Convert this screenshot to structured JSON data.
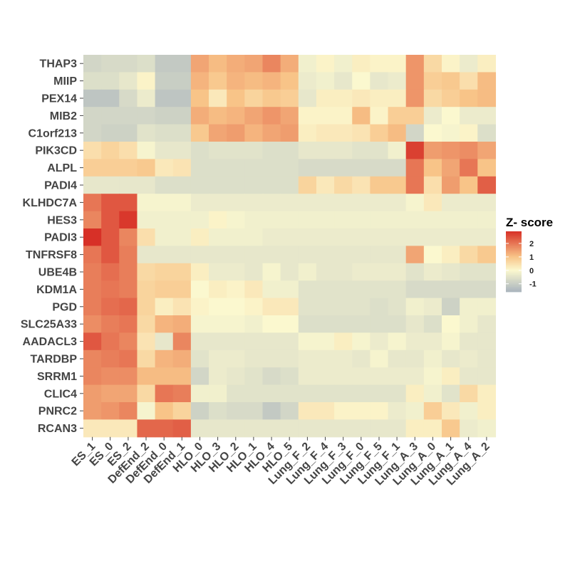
{
  "chart_data": {
    "type": "heatmap",
    "rows": [
      "THAP3",
      "MIIP",
      "PEX14",
      "MIB2",
      "C1orf213",
      "PIK3CD",
      "ALPL",
      "PADI4",
      "KLHDC7A",
      "HES3",
      "PADI3",
      "TNFRSF8",
      "UBE4B",
      "KDM1A",
      "PGD",
      "SLC25A33",
      "AADACL3",
      "TARDBP",
      "SRRM1",
      "CLIC4",
      "PNRC2",
      "RCAN3"
    ],
    "columns": [
      "ES_1",
      "ES_0",
      "ES_2",
      "DefEnd_2",
      "DefEnd_0",
      "DefEnd_1",
      "HLO_0",
      "HLO_3",
      "HLO_2",
      "HLO_1",
      "HLO_4",
      "HLO_5",
      "Lung_F_2",
      "Lung_F_4",
      "Lung_F_3",
      "Lung_F_0",
      "Lung_F_5",
      "Lung_F_1",
      "Lung_A_3",
      "Lung_A_0",
      "Lung_A_1",
      "Lung_A_4",
      "Lung_A_2"
    ],
    "values": [
      [
        -0.8,
        -0.7,
        -0.7,
        -0.6,
        -1.1,
        -1.1,
        1.4,
        1.1,
        1.3,
        1.4,
        1.8,
        1.3,
        -0.2,
        0.1,
        -0.2,
        0.2,
        0.1,
        0.1,
        1.6,
        0.6,
        0.1,
        -0.3,
        0.2
      ],
      [
        -0.6,
        -0.6,
        -0.4,
        0.1,
        -1.0,
        -1.0,
        1.2,
        0.9,
        1.2,
        1.1,
        1.2,
        1.0,
        -0.3,
        -0.2,
        -0.4,
        0.0,
        -0.4,
        -0.3,
        1.6,
        0.8,
        0.9,
        0.5,
        1.1
      ],
      [
        -1.2,
        -1.2,
        -0.7,
        -0.3,
        -1.2,
        -1.2,
        1.0,
        0.3,
        1.0,
        0.7,
        0.9,
        0.8,
        -0.4,
        0.2,
        0.2,
        0.3,
        0.2,
        0.2,
        1.6,
        0.6,
        0.8,
        1.0,
        1.1
      ],
      [
        -0.8,
        -0.8,
        -0.8,
        -0.8,
        -0.9,
        -0.9,
        1.3,
        1.1,
        1.2,
        1.4,
        1.6,
        1.4,
        0.1,
        0.1,
        0.1,
        1.1,
        0.1,
        0.8,
        0.8,
        -0.3,
        0.0,
        -0.3,
        -0.3
      ],
      [
        -0.8,
        -0.9,
        -0.9,
        -0.5,
        -0.6,
        -0.6,
        0.9,
        1.4,
        1.5,
        1.2,
        1.4,
        1.5,
        0.2,
        0.3,
        0.3,
        0.4,
        0.8,
        1.1,
        -0.8,
        0.0,
        -0.1,
        0.1,
        -0.6
      ],
      [
        0.5,
        0.7,
        0.5,
        -0.1,
        -0.4,
        -0.4,
        -0.6,
        -0.5,
        -0.5,
        -0.5,
        -0.6,
        -0.6,
        -0.4,
        -0.4,
        -0.4,
        -0.5,
        -0.5,
        -0.2,
        2.7,
        1.5,
        1.6,
        1.7,
        1.4
      ],
      [
        0.8,
        0.8,
        0.8,
        0.9,
        0.3,
        0.4,
        -0.6,
        -0.6,
        -0.6,
        -0.6,
        -0.6,
        -0.6,
        -0.7,
        -0.7,
        -0.7,
        -0.7,
        -0.7,
        -0.7,
        2.0,
        1.0,
        1.4,
        2.0,
        1.0
      ],
      [
        -0.4,
        -0.4,
        -0.4,
        -0.4,
        -0.6,
        -0.6,
        -0.6,
        -0.6,
        -0.6,
        -0.6,
        -0.6,
        -0.6,
        0.7,
        0.3,
        0.6,
        0.4,
        0.9,
        0.9,
        2.0,
        0.5,
        1.5,
        1.0,
        2.3
      ],
      [
        2.0,
        2.4,
        2.4,
        -0.1,
        -0.1,
        -0.1,
        -0.3,
        -0.3,
        -0.3,
        -0.3,
        -0.3,
        -0.3,
        -0.3,
        -0.3,
        -0.3,
        -0.3,
        -0.3,
        -0.3,
        -0.1,
        0.3,
        -0.3,
        -0.3,
        -0.3
      ],
      [
        1.8,
        2.4,
        2.8,
        -0.2,
        -0.2,
        -0.2,
        -0.2,
        0.1,
        -0.1,
        -0.2,
        -0.2,
        -0.2,
        -0.2,
        -0.2,
        -0.2,
        -0.2,
        -0.2,
        -0.2,
        -0.2,
        -0.2,
        -0.2,
        -0.2,
        -0.2
      ],
      [
        2.9,
        2.4,
        1.8,
        0.5,
        -0.2,
        -0.2,
        0.2,
        -0.2,
        -0.2,
        -0.2,
        -0.3,
        -0.3,
        -0.3,
        -0.3,
        -0.3,
        -0.3,
        -0.3,
        -0.3,
        -0.3,
        -0.3,
        -0.3,
        -0.3,
        -0.3
      ],
      [
        2.0,
        2.4,
        1.9,
        -0.4,
        -0.4,
        -0.4,
        -0.4,
        -0.4,
        -0.4,
        -0.4,
        -0.4,
        -0.4,
        -0.4,
        -0.4,
        -0.4,
        -0.4,
        -0.4,
        -0.4,
        1.4,
        0.0,
        0.2,
        0.6,
        0.9
      ],
      [
        1.9,
        2.1,
        1.9,
        0.6,
        0.7,
        0.7,
        0.2,
        -0.3,
        -0.3,
        -0.4,
        -0.1,
        -0.4,
        -0.2,
        -0.4,
        -0.4,
        -0.3,
        -0.3,
        -0.3,
        -0.5,
        -0.3,
        -0.4,
        -0.5,
        -0.5
      ],
      [
        1.9,
        2.0,
        1.9,
        0.7,
        0.8,
        0.8,
        0.0,
        0.2,
        0.1,
        0.3,
        -0.2,
        -0.2,
        -0.5,
        -0.5,
        -0.5,
        -0.5,
        -0.5,
        -0.5,
        -0.7,
        -0.7,
        -0.7,
        -0.7,
        -0.7
      ],
      [
        1.9,
        2.1,
        2.2,
        0.7,
        0.2,
        0.4,
        0.1,
        0.0,
        0.0,
        0.1,
        0.3,
        0.3,
        -0.5,
        -0.5,
        -0.5,
        -0.5,
        -0.6,
        -0.5,
        -0.2,
        -0.3,
        -0.9,
        -0.2,
        -0.2
      ],
      [
        1.7,
        1.9,
        2.0,
        0.6,
        1.2,
        1.3,
        -0.1,
        -0.1,
        -0.1,
        -0.2,
        0.0,
        0.0,
        -0.6,
        -0.6,
        -0.6,
        -0.6,
        -0.6,
        -0.6,
        -0.4,
        -0.6,
        0.0,
        -0.2,
        -0.4
      ],
      [
        2.4,
        2.0,
        1.8,
        0.4,
        -0.4,
        1.8,
        -0.4,
        -0.4,
        -0.4,
        -0.4,
        -0.4,
        -0.4,
        -0.1,
        -0.1,
        0.2,
        -0.1,
        -0.3,
        -0.1,
        -0.3,
        -0.3,
        -0.1,
        -0.4,
        -0.4
      ],
      [
        1.8,
        1.9,
        2.0,
        0.6,
        1.2,
        1.3,
        -0.5,
        -0.3,
        -0.3,
        -0.4,
        -0.4,
        -0.4,
        -0.3,
        -0.3,
        -0.3,
        -0.4,
        -0.1,
        -0.4,
        -0.4,
        -0.2,
        -0.4,
        -0.3,
        -0.4
      ],
      [
        1.8,
        1.7,
        1.7,
        1.1,
        1.1,
        1.1,
        -0.8,
        -0.3,
        -0.4,
        -0.5,
        -0.7,
        -0.6,
        -0.3,
        -0.3,
        -0.3,
        -0.3,
        -0.3,
        -0.3,
        -0.3,
        -0.1,
        0.2,
        -0.4,
        -0.4
      ],
      [
        1.5,
        1.4,
        1.4,
        0.6,
        2.0,
        1.9,
        -0.2,
        -0.2,
        -0.5,
        -0.5,
        -0.5,
        -0.5,
        -0.5,
        -0.5,
        -0.5,
        -0.5,
        -0.5,
        -0.5,
        0.2,
        -0.2,
        -0.5,
        0.6,
        0.2
      ],
      [
        1.5,
        1.6,
        1.8,
        -0.1,
        1.0,
        0.7,
        -0.9,
        -0.6,
        -0.7,
        -0.7,
        -1.1,
        -0.8,
        0.3,
        0.3,
        0.1,
        0.1,
        0.1,
        -0.3,
        -0.2,
        0.8,
        0.3,
        -0.2,
        0.2
      ],
      [
        0.3,
        0.3,
        0.3,
        2.2,
        2.2,
        2.3,
        -0.4,
        -0.4,
        -0.4,
        -0.4,
        -0.4,
        -0.4,
        -0.4,
        -0.4,
        -0.4,
        -0.4,
        -0.4,
        -0.4,
        0.2,
        0.2,
        0.9,
        -0.3,
        -0.2
      ]
    ],
    "legend": {
      "title": "Z- score",
      "ticks": [
        2,
        1,
        0,
        -1
      ],
      "tick_labels": [
        "2",
        "1",
        "0",
        "-1"
      ],
      "range": [
        -1.6,
        2.9
      ],
      "placement": "right"
    },
    "colors": {
      "low": "#a9b4be",
      "mid": "#fbf8cf",
      "mid_high": "#f8c488",
      "high": "#d73027"
    }
  }
}
